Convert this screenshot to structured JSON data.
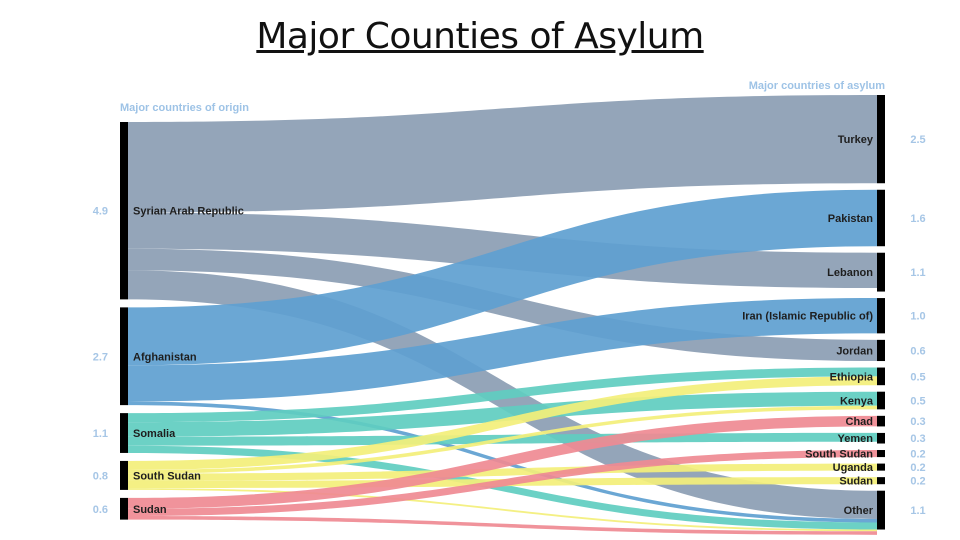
{
  "slide": {
    "title": "Major Counties of Asylum"
  },
  "chart_data": {
    "type": "sankey",
    "title": "",
    "origin_header": "Major countries of origin",
    "asylum_header": "Major countries of asylum",
    "unit": "millions",
    "origins": [
      {
        "name": "Syrian Arab Republic",
        "value": 4.9,
        "label": "4.9",
        "color": "#8b9db3"
      },
      {
        "name": "Afghanistan",
        "value": 2.7,
        "label": "2.7",
        "color": "#5e9fd0"
      },
      {
        "name": "Somalia",
        "value": 1.1,
        "label": "1.1",
        "color": "#5fcdc0"
      },
      {
        "name": "South Sudan",
        "value": 0.8,
        "label": "0.8",
        "color": "#f3ef7a"
      },
      {
        "name": "Sudan",
        "value": 0.6,
        "label": "0.6",
        "color": "#ef8a92"
      }
    ],
    "destinations": [
      {
        "name": "Turkey",
        "value": 2.5,
        "label": "2.5"
      },
      {
        "name": "Pakistan",
        "value": 1.6,
        "label": "1.6"
      },
      {
        "name": "Lebanon",
        "value": 1.1,
        "label": "1.1"
      },
      {
        "name": "Iran (Islamic Republic of)",
        "value": 1.0,
        "label": "1.0"
      },
      {
        "name": "Jordan",
        "value": 0.6,
        "label": "0.6"
      },
      {
        "name": "Ethiopia",
        "value": 0.5,
        "label": "0.5"
      },
      {
        "name": "Kenya",
        "value": 0.5,
        "label": "0.5"
      },
      {
        "name": "Chad",
        "value": 0.3,
        "label": "0.3"
      },
      {
        "name": "Yemen",
        "value": 0.3,
        "label": "0.3"
      },
      {
        "name": "South Sudan",
        "value": 0.2,
        "label": "0.2"
      },
      {
        "name": "Uganda",
        "value": 0.2,
        "label": "0.2"
      },
      {
        "name": "Sudan",
        "value": 0.2,
        "label": "0.2"
      },
      {
        "name": "Other",
        "value": 1.1,
        "label": "1.1"
      }
    ],
    "flows": [
      {
        "from": "Syrian Arab Republic",
        "to": "Turkey",
        "value": 2.5
      },
      {
        "from": "Syrian Arab Republic",
        "to": "Lebanon",
        "value": 1.0
      },
      {
        "from": "Syrian Arab Republic",
        "to": "Jordan",
        "value": 0.6
      },
      {
        "from": "Syrian Arab Republic",
        "to": "Other",
        "value": 0.8
      },
      {
        "from": "Afghanistan",
        "to": "Pakistan",
        "value": 1.6
      },
      {
        "from": "Afghanistan",
        "to": "Iran (Islamic Republic of)",
        "value": 1.0
      },
      {
        "from": "Afghanistan",
        "to": "Other",
        "value": 0.1
      },
      {
        "from": "Somalia",
        "to": "Ethiopia",
        "value": 0.25
      },
      {
        "from": "Somalia",
        "to": "Kenya",
        "value": 0.4
      },
      {
        "from": "Somalia",
        "to": "Yemen",
        "value": 0.25
      },
      {
        "from": "Somalia",
        "to": "Other",
        "value": 0.2
      },
      {
        "from": "South Sudan",
        "to": "Ethiopia",
        "value": 0.25
      },
      {
        "from": "South Sudan",
        "to": "Kenya",
        "value": 0.1
      },
      {
        "from": "South Sudan",
        "to": "Uganda",
        "value": 0.2
      },
      {
        "from": "South Sudan",
        "to": "Sudan",
        "value": 0.2
      },
      {
        "from": "South Sudan",
        "to": "Other",
        "value": 0.05
      },
      {
        "from": "Sudan",
        "to": "Chad",
        "value": 0.3
      },
      {
        "from": "Sudan",
        "to": "South Sudan",
        "value": 0.2
      },
      {
        "from": "Sudan",
        "to": "Other",
        "value": 0.1
      }
    ]
  }
}
